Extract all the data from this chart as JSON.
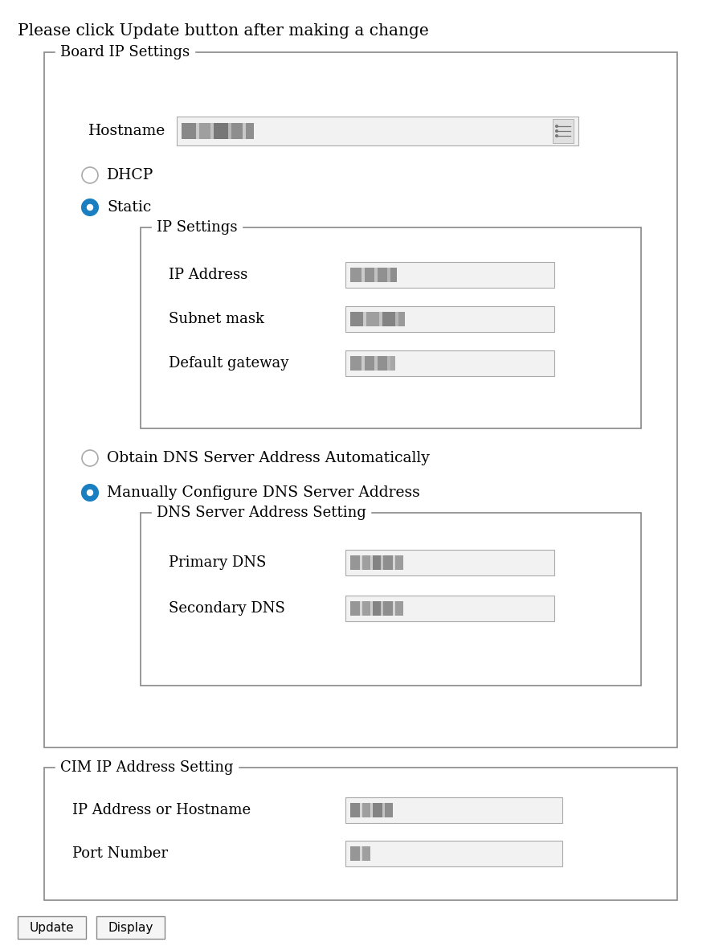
{
  "bg_color": "#ffffff",
  "text_color": "#000000",
  "title": "Please click Update button after making a change",
  "title_fontsize": 14.5,
  "label_fontsize": 13.5,
  "small_fontsize": 13,
  "group_label_fontsize": 13,
  "board_ip_label": "Board IP Settings",
  "hostname_label": "Hostname",
  "dhcp_label": "DHCP",
  "static_label": "Static",
  "ip_settings_label": "IP Settings",
  "ip_address_label": "IP Address",
  "subnet_mask_label": "Subnet mask",
  "default_gw_label": "Default gateway",
  "dns_auto_label": "Obtain DNS Server Address Automatically",
  "dns_manual_label": "Manually Configure DNS Server Address",
  "dns_setting_label": "DNS Server Address Setting",
  "primary_dns_label": "Primary DNS",
  "secondary_dns_label": "Secondary DNS",
  "cim_label": "CIM IP Address Setting",
  "ip_hostname_label": "IP Address or Hostname",
  "port_label": "Port Number",
  "update_btn": "Update",
  "display_btn": "Display",
  "radio_blue": "#1a7fc1",
  "box_border": "#888888",
  "input_border": "#aaaaaa",
  "input_bg": "#f2f2f2",
  "btn_border": "#888888",
  "btn_bg": "#f5f5f5"
}
